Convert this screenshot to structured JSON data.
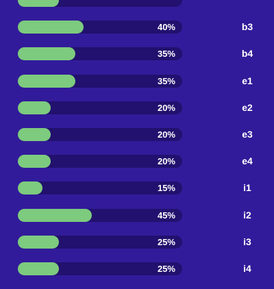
{
  "colors": {
    "background": "#321B9A",
    "track": "#22116E",
    "fill": "#7DCB7F",
    "text": "#FFFFFF"
  },
  "rows": [
    {
      "label": "",
      "percent_text": "",
      "progress": 0.25
    },
    {
      "label": "b3",
      "percent_text": "40%",
      "progress": 0.4
    },
    {
      "label": "b4",
      "percent_text": "35%",
      "progress": 0.35
    },
    {
      "label": "e1",
      "percent_text": "35%",
      "progress": 0.35
    },
    {
      "label": "e2",
      "percent_text": "20%",
      "progress": 0.2
    },
    {
      "label": "e3",
      "percent_text": "20%",
      "progress": 0.2
    },
    {
      "label": "e4",
      "percent_text": "20%",
      "progress": 0.2
    },
    {
      "label": "i1",
      "percent_text": "15%",
      "progress": 0.15
    },
    {
      "label": "i2",
      "percent_text": "45%",
      "progress": 0.45
    },
    {
      "label": "i3",
      "percent_text": "25%",
      "progress": 0.25
    },
    {
      "label": "i4",
      "percent_text": "25%",
      "progress": 0.25
    }
  ]
}
